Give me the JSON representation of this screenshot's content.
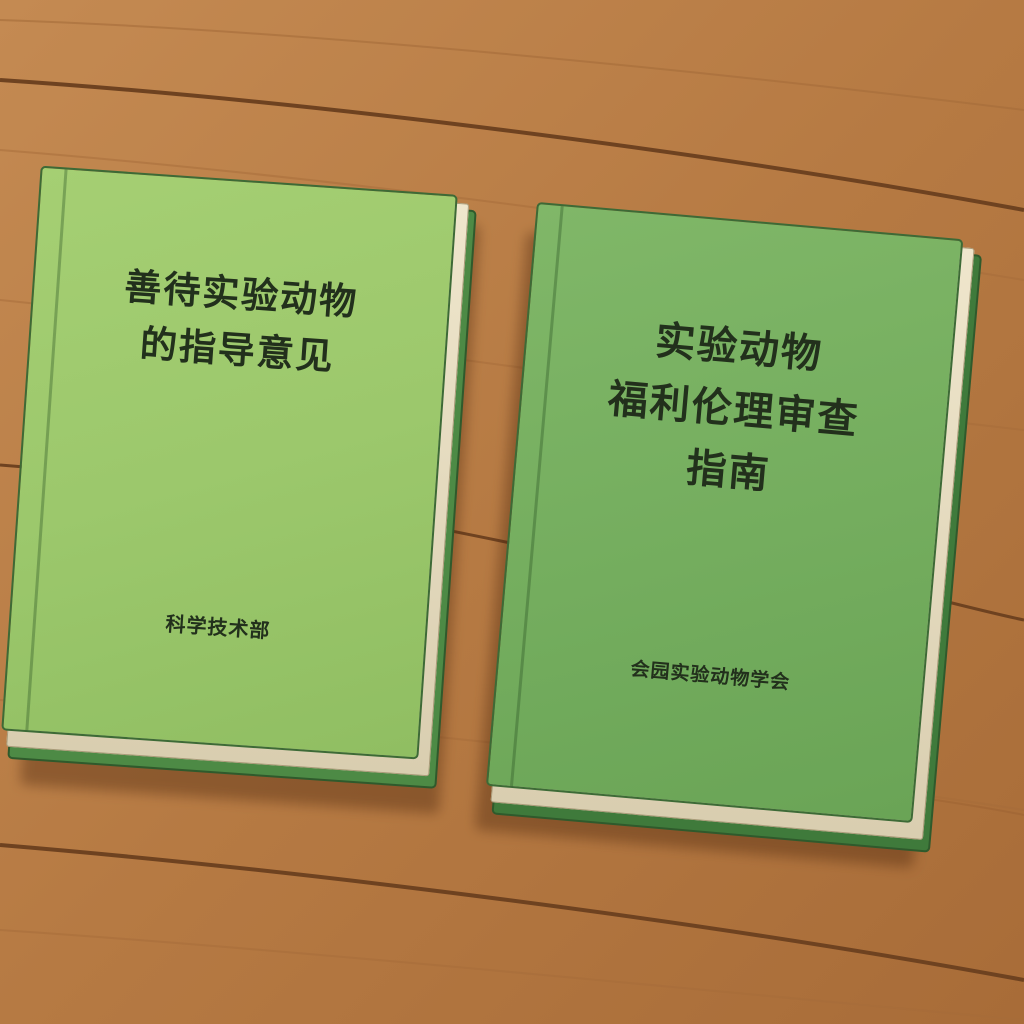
{
  "colors": {
    "table": "#b97a45",
    "table_dark": "#8a5428",
    "book_1_cover": "#9cc86c",
    "book_2_cover": "#74ad5e",
    "text": "#22301c"
  },
  "books": [
    {
      "title": "善待实验动物\n的指导意见",
      "publisher": "科学技术部"
    },
    {
      "title": "实验动物\n福利伦理审查\n指南",
      "publisher": "会园实验动物学会"
    }
  ]
}
